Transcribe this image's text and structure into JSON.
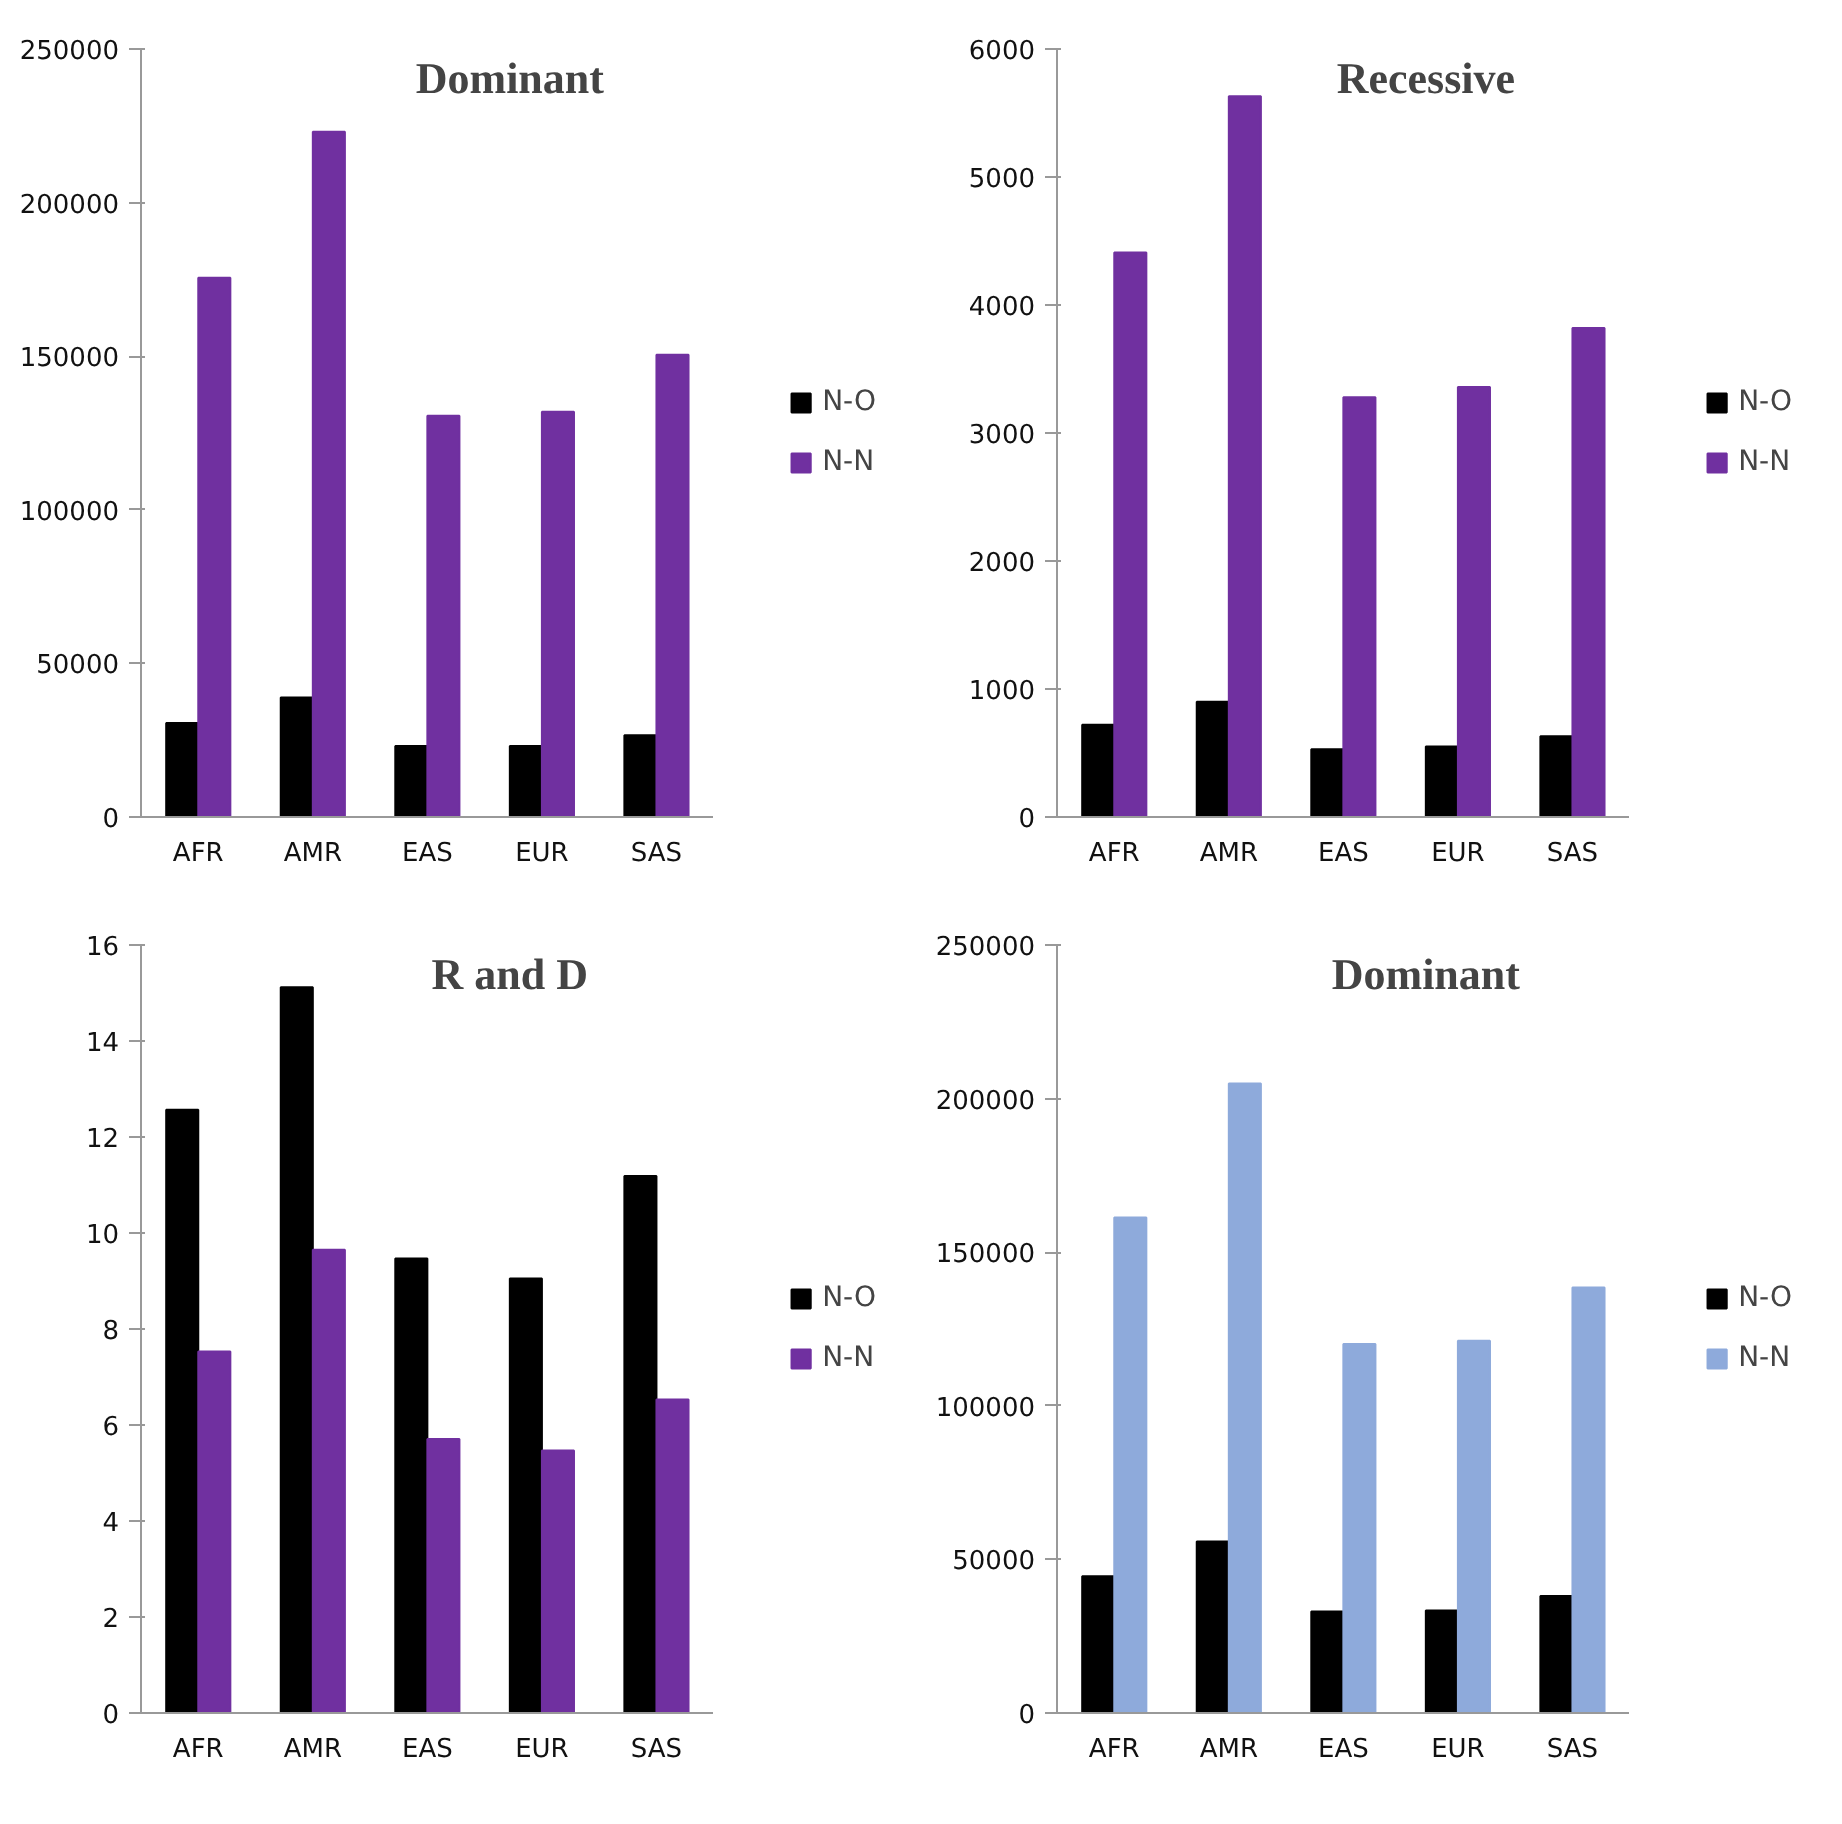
{
  "chart_data": [
    {
      "type": "bar",
      "title": "Dominant",
      "categories": [
        "AFR",
        "AMR",
        "EAS",
        "EUR",
        "SAS"
      ],
      "ylim": [
        0,
        250000
      ],
      "yticks": [
        0,
        50000,
        100000,
        150000,
        200000,
        250000
      ],
      "grid": false,
      "legend": "right",
      "series": [
        {
          "name": "N-O",
          "color": "#000000",
          "values": [
            30600,
            38900,
            23100,
            23100,
            26600
          ]
        },
        {
          "name": "N-N",
          "color": "#7030a0",
          "values": [
            175500,
            223100,
            130600,
            131900,
            150500
          ]
        }
      ]
    },
    {
      "type": "bar",
      "title": "Recessive",
      "categories": [
        "AFR",
        "AMR",
        "EAS",
        "EUR",
        "SAS"
      ],
      "ylim": [
        0,
        6000
      ],
      "yticks": [
        0,
        1000,
        2000,
        3000,
        4000,
        5000,
        6000
      ],
      "grid": false,
      "legend": "right",
      "series": [
        {
          "name": "N-O",
          "color": "#000000",
          "values": [
            720,
            900,
            530,
            550,
            630
          ]
        },
        {
          "name": "N-N",
          "color": "#7030a0",
          "values": [
            4410,
            5630,
            3280,
            3360,
            3820
          ]
        }
      ]
    },
    {
      "type": "bar",
      "title": "R and D",
      "categories": [
        "AFR",
        "AMR",
        "EAS",
        "EUR",
        "SAS"
      ],
      "ylim": [
        0,
        16
      ],
      "yticks": [
        0,
        2,
        4,
        6,
        8,
        10,
        12,
        14,
        16
      ],
      "grid": false,
      "legend": "right",
      "series": [
        {
          "name": "N-O",
          "color": "#000000",
          "values": [
            12.57,
            15.12,
            9.47,
            9.05,
            11.19
          ]
        },
        {
          "name": "N-N",
          "color": "#7030a0",
          "values": [
            7.53,
            9.65,
            5.71,
            5.47,
            6.53
          ]
        }
      ]
    },
    {
      "type": "bar",
      "title": "Dominant",
      "categories": [
        "AFR",
        "AMR",
        "EAS",
        "EUR",
        "SAS"
      ],
      "ylim": [
        0,
        250000
      ],
      "yticks": [
        0,
        50000,
        100000,
        150000,
        200000,
        250000
      ],
      "grid": false,
      "legend": "right",
      "series": [
        {
          "name": "N-O",
          "color": "#000000",
          "values": [
            44500,
            55800,
            33000,
            33400,
            38100
          ]
        },
        {
          "name": "N-N",
          "color": "#8eaadb",
          "values": [
            161300,
            204900,
            120100,
            121200,
            138500
          ]
        }
      ]
    }
  ]
}
